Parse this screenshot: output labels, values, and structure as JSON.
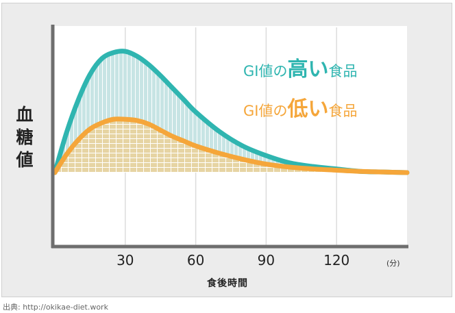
{
  "chart_data": {
    "type": "line",
    "ylabel": "血糖値",
    "xlabel": "食後時間",
    "x_unit": "(分)",
    "x_ticks": [
      "30",
      "60",
      "90",
      "120"
    ],
    "xlim": [
      0,
      150
    ],
    "series": [
      {
        "name_prefix": "GI値の",
        "name_emphasis": "高い",
        "name_suffix": "食品",
        "color": "#2fb5b0",
        "x": [
          0,
          5,
          10,
          15,
          20,
          25,
          30,
          35,
          40,
          45,
          50,
          55,
          60,
          70,
          80,
          90,
          100,
          110,
          120,
          130,
          140,
          150
        ],
        "y": [
          0,
          0.33,
          0.6,
          0.81,
          0.94,
          0.99,
          1.0,
          0.96,
          0.89,
          0.8,
          0.7,
          0.6,
          0.5,
          0.34,
          0.22,
          0.14,
          0.08,
          0.05,
          0.03,
          0.01,
          0.005,
          0
        ]
      },
      {
        "name_prefix": "GI値の",
        "name_emphasis": "低い",
        "name_suffix": "食品",
        "color": "#f5a63a",
        "x": [
          0,
          5,
          10,
          15,
          20,
          25,
          30,
          35,
          40,
          45,
          50,
          55,
          60,
          70,
          80,
          90,
          100,
          110,
          120,
          130,
          140,
          150
        ],
        "y": [
          0,
          0.15,
          0.27,
          0.36,
          0.41,
          0.44,
          0.44,
          0.43,
          0.4,
          0.35,
          0.3,
          0.26,
          0.22,
          0.16,
          0.11,
          0.07,
          0.045,
          0.03,
          0.02,
          0.01,
          0.005,
          0
        ]
      }
    ],
    "grid": "vertical"
  },
  "source": "出典: http://okikae-diet.work",
  "colors": {
    "background": "#ececec",
    "plot": "#ffffff",
    "axis": "#6e6e6e",
    "high_fill": "#c7e4e4",
    "low_fill": "#e8d7a8"
  }
}
